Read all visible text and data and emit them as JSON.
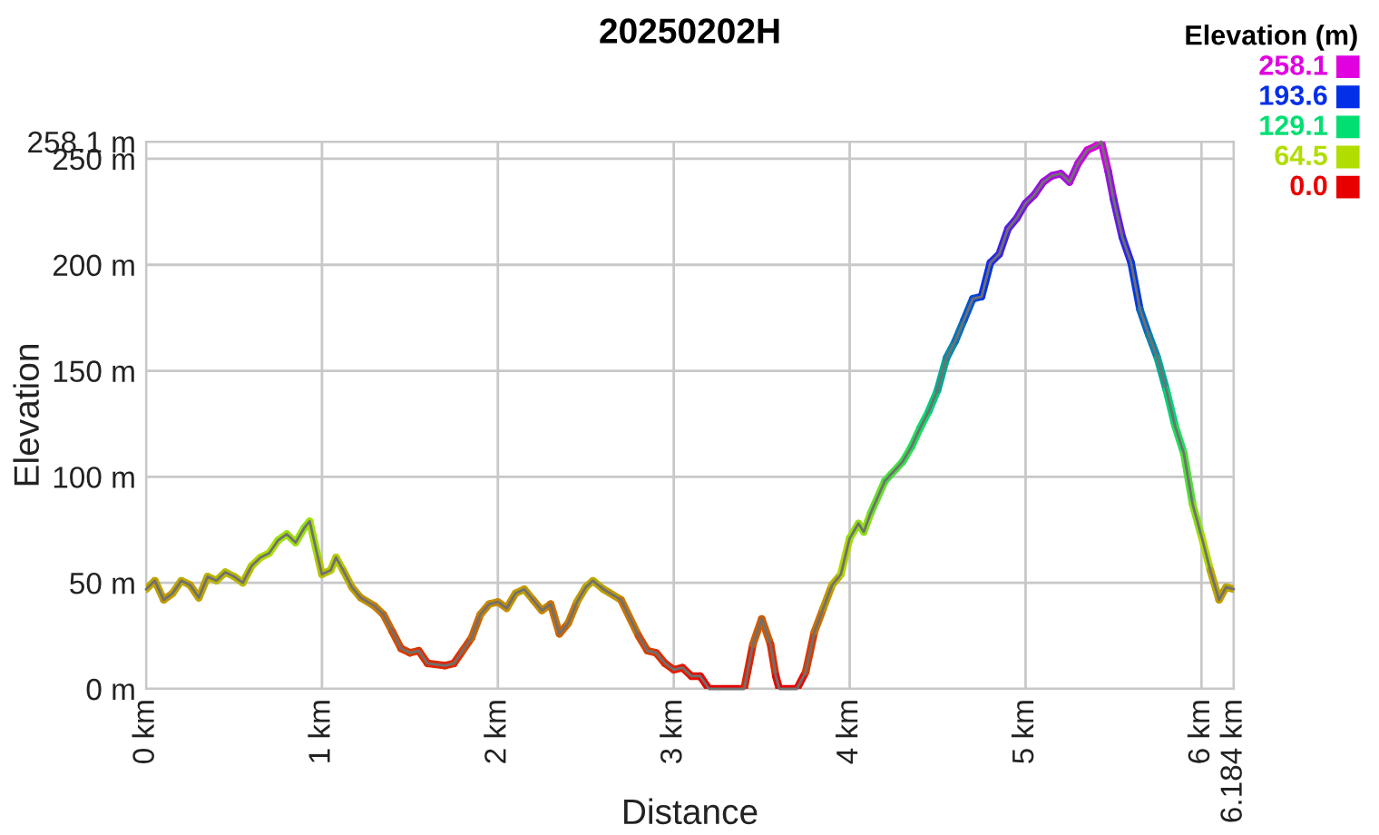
{
  "chart_data": {
    "type": "line",
    "title": "20250202H",
    "xlabel": "Distance",
    "ylabel": "Elevation",
    "clabel": "Elevation (m)",
    "x": [
      0,
      0.05,
      0.1,
      0.15,
      0.2,
      0.25,
      0.3,
      0.35,
      0.4,
      0.45,
      0.5,
      0.55,
      0.6,
      0.65,
      0.7,
      0.75,
      0.8,
      0.85,
      0.9,
      0.93,
      0.98,
      1.0,
      1.05,
      1.08,
      1.12,
      1.17,
      1.22,
      1.3,
      1.35,
      1.4,
      1.45,
      1.5,
      1.55,
      1.6,
      1.7,
      1.75,
      1.8,
      1.85,
      1.9,
      1.95,
      2.0,
      2.05,
      2.1,
      2.15,
      2.2,
      2.25,
      2.3,
      2.35,
      2.4,
      2.45,
      2.5,
      2.54,
      2.6,
      2.7,
      2.8,
      2.85,
      2.9,
      2.95,
      3.0,
      3.05,
      3.1,
      3.15,
      3.2,
      3.4,
      3.45,
      3.5,
      3.55,
      3.58,
      3.6,
      3.7,
      3.75,
      3.8,
      3.85,
      3.9,
      3.95,
      4.0,
      4.05,
      4.08,
      4.12,
      4.2,
      4.3,
      4.35,
      4.4,
      4.45,
      4.5,
      4.55,
      4.6,
      4.65,
      4.7,
      4.75,
      4.8,
      4.85,
      4.9,
      4.95,
      5.0,
      5.05,
      5.1,
      5.15,
      5.2,
      5.25,
      5.3,
      5.35,
      5.4,
      5.43,
      5.47,
      5.5,
      5.55,
      5.6,
      5.65,
      5.7,
      5.75,
      5.8,
      5.85,
      5.9,
      5.95,
      6.0,
      6.05,
      6.1,
      6.14,
      6.184
    ],
    "values": [
      47,
      51,
      42,
      45,
      51,
      49,
      43,
      53,
      51,
      55,
      53,
      50,
      58,
      62,
      64,
      70,
      73,
      69,
      76,
      79,
      61,
      54,
      56,
      62,
      56,
      48,
      43,
      39,
      35,
      27,
      19,
      17,
      18,
      12,
      11,
      12,
      18,
      24,
      35,
      40,
      41,
      38,
      45,
      47,
      42,
      37,
      40,
      26,
      31,
      41,
      48,
      51,
      47,
      42,
      25,
      18,
      17,
      12,
      9,
      10,
      6,
      6,
      0,
      0,
      21,
      33,
      21,
      6,
      0,
      0,
      8,
      27,
      38,
      49,
      54,
      71,
      78,
      74,
      83,
      98,
      107,
      114,
      123,
      131,
      141,
      156,
      164,
      174,
      184,
      185,
      201,
      205,
      217,
      222,
      229,
      233,
      239,
      242,
      243,
      239,
      248,
      254,
      256,
      258.1,
      244,
      231,
      213,
      201,
      179,
      167,
      156,
      141,
      124,
      111,
      87,
      72,
      56,
      42,
      48,
      47
    ],
    "xlim": [
      0,
      6.184
    ],
    "ylim": [
      0,
      258.1
    ],
    "xticks": [
      {
        "value": 0,
        "label": "0 km"
      },
      {
        "value": 1,
        "label": "1 km"
      },
      {
        "value": 2,
        "label": "2 km"
      },
      {
        "value": 3,
        "label": "3 km"
      },
      {
        "value": 4,
        "label": "4 km"
      },
      {
        "value": 5,
        "label": "5 km"
      },
      {
        "value": 6,
        "label": "6 km"
      },
      {
        "value": 6.184,
        "label": "6.184 km"
      }
    ],
    "yticks": [
      {
        "value": 0,
        "label": "0 m"
      },
      {
        "value": 50,
        "label": "50 m"
      },
      {
        "value": 100,
        "label": "100 m"
      },
      {
        "value": 150,
        "label": "150 m"
      },
      {
        "value": 200,
        "label": "200 m"
      },
      {
        "value": 250,
        "label": "250 m"
      },
      {
        "value": 258.1,
        "label": "258.1 m"
      }
    ],
    "clim": [
      0,
      258.1
    ],
    "cticks": [
      {
        "value": 258.1,
        "label": "258.1"
      },
      {
        "value": 193.6,
        "label": "193.6"
      },
      {
        "value": 129.1,
        "label": "129.1"
      },
      {
        "value": 64.5,
        "label": "64.5"
      },
      {
        "value": 0,
        "label": "0.0"
      }
    ],
    "grid": true,
    "marker": "none",
    "line_style": "solid"
  }
}
